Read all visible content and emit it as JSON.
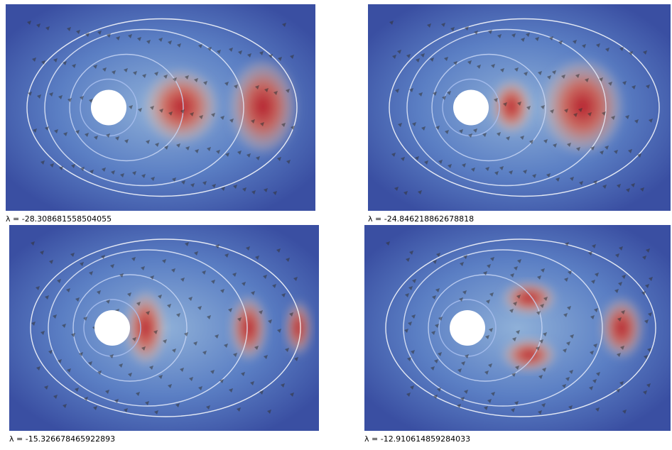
{
  "panels": [
    {
      "label": "λ = -28.308681558504055"
    },
    {
      "label": "λ = -24.846218862678818"
    },
    {
      "label": "λ = -15.326678465922893"
    },
    {
      "label": "λ = -12.910614859284033"
    }
  ]
}
